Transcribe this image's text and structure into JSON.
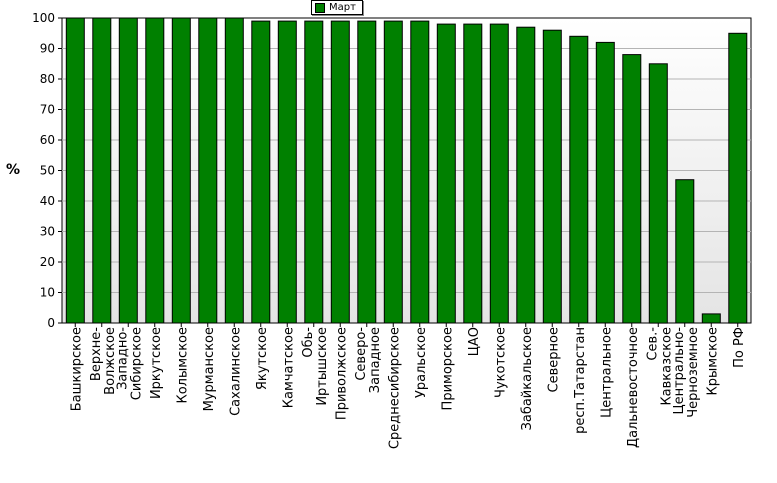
{
  "chart_data": {
    "type": "bar",
    "ylabel": "%",
    "ylim": [
      0,
      100
    ],
    "yticks": [
      0,
      10,
      20,
      30,
      40,
      50,
      60,
      70,
      80,
      90,
      100
    ],
    "grid": true,
    "legend_position": "top-center",
    "colors": {
      "bar": "#008000",
      "plot_bg_top": "#ffffff",
      "plot_bg_bottom": "#e4e4e4"
    },
    "categories": [
      "Башкирское",
      "Верхне-Волжское",
      "Западно-Сибирское",
      "Иркутское",
      "Колымское",
      "Мурманское",
      "Сахалинское",
      "Якутское",
      "Камчатское",
      "Обь-Иртышское",
      "Приволжское",
      "Северо-Западное",
      "Среднесибирское",
      "Уральское",
      "Приморское",
      "ЦАО",
      "Чукотское",
      "Забайкальское",
      "Северное",
      "респ.Татарстан",
      "Центральное",
      "Дальневосточное",
      "Сев.-Кавказское",
      "Центрально-Черноземное",
      "Крымское",
      "По РФ"
    ],
    "series": [
      {
        "name": "Март",
        "values": [
          100,
          100,
          100,
          100,
          100,
          100,
          100,
          99,
          99,
          99,
          99,
          99,
          99,
          99,
          98,
          98,
          98,
          97,
          96,
          94,
          92,
          88,
          85,
          47,
          3,
          95
        ]
      }
    ]
  }
}
